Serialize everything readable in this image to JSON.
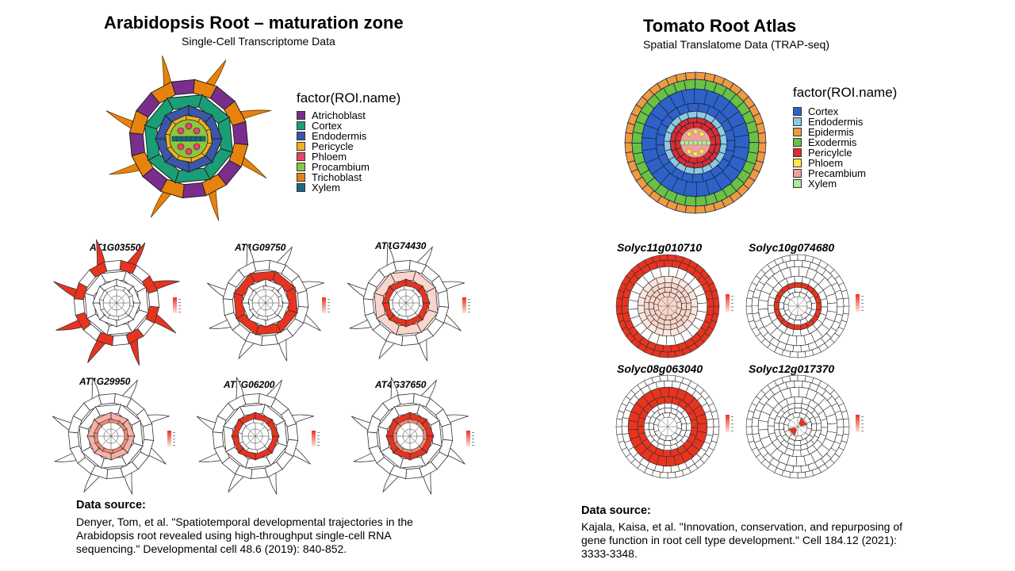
{
  "left": {
    "title": "Arabidopsis Root – maturation zone",
    "subtitle": "Single-Cell Transcriptome  Data",
    "legend_title": "factor(ROI.name)",
    "legend": [
      {
        "label": "Atrichoblast",
        "color": "#7b2d8e"
      },
      {
        "label": "Cortex",
        "color": "#1a9e76"
      },
      {
        "label": "Endodermis",
        "color": "#3a57a8"
      },
      {
        "label": "Pericycle",
        "color": "#f2b21b"
      },
      {
        "label": "Phloem",
        "color": "#e8446d"
      },
      {
        "label": "Procambium",
        "color": "#8dc63f"
      },
      {
        "label": "Trichoblast",
        "color": "#e8820e"
      },
      {
        "label": "Xylem",
        "color": "#176c7d"
      }
    ],
    "genes": [
      "AT1G03550",
      "AT1G09750",
      "AT1G74430",
      "AT1G29950",
      "AT5G06200",
      "AT4G37650"
    ],
    "source_label": "Data source:",
    "source_lines": [
      "Denyer, Tom, et al. \"Spatiotemporal developmental trajectories in the",
      "Arabidopsis root revealed using high-throughput  single-cell RNA",
      "sequencing.\"  Developmental cell 48.6 (2019): 840-852."
    ]
  },
  "right": {
    "title": "Tomato Root Atlas",
    "subtitle": "Spatial Translatome  Data (TRAP-seq)",
    "legend_title": "factor(ROI.name)",
    "legend": [
      {
        "label": "Cortex",
        "color": "#2e62c7"
      },
      {
        "label": "Endodermis",
        "color": "#8ec9df"
      },
      {
        "label": "Epidermis",
        "color": "#f09a3e"
      },
      {
        "label": "Exodermis",
        "color": "#6ac142"
      },
      {
        "label": "Pericylcle",
        "color": "#e02b2b"
      },
      {
        "label": "Phloem",
        "color": "#ffe94a"
      },
      {
        "label": "Precambium",
        "color": "#f0a09a"
      },
      {
        "label": "Xylem",
        "color": "#aee89a"
      }
    ],
    "genes": [
      "Solyc11g010710",
      "Solyc10g074680",
      "Solyc08g063040",
      "Solyc12g017370"
    ],
    "source_label": "Data source:",
    "source_lines": [
      "Kajala, Kaisa, et al. \"Innovation,  conservation,  and repurposing of",
      "gene function  in root cell type development.\"  Cell 184.12 (2021):",
      "3333-3348."
    ]
  }
}
